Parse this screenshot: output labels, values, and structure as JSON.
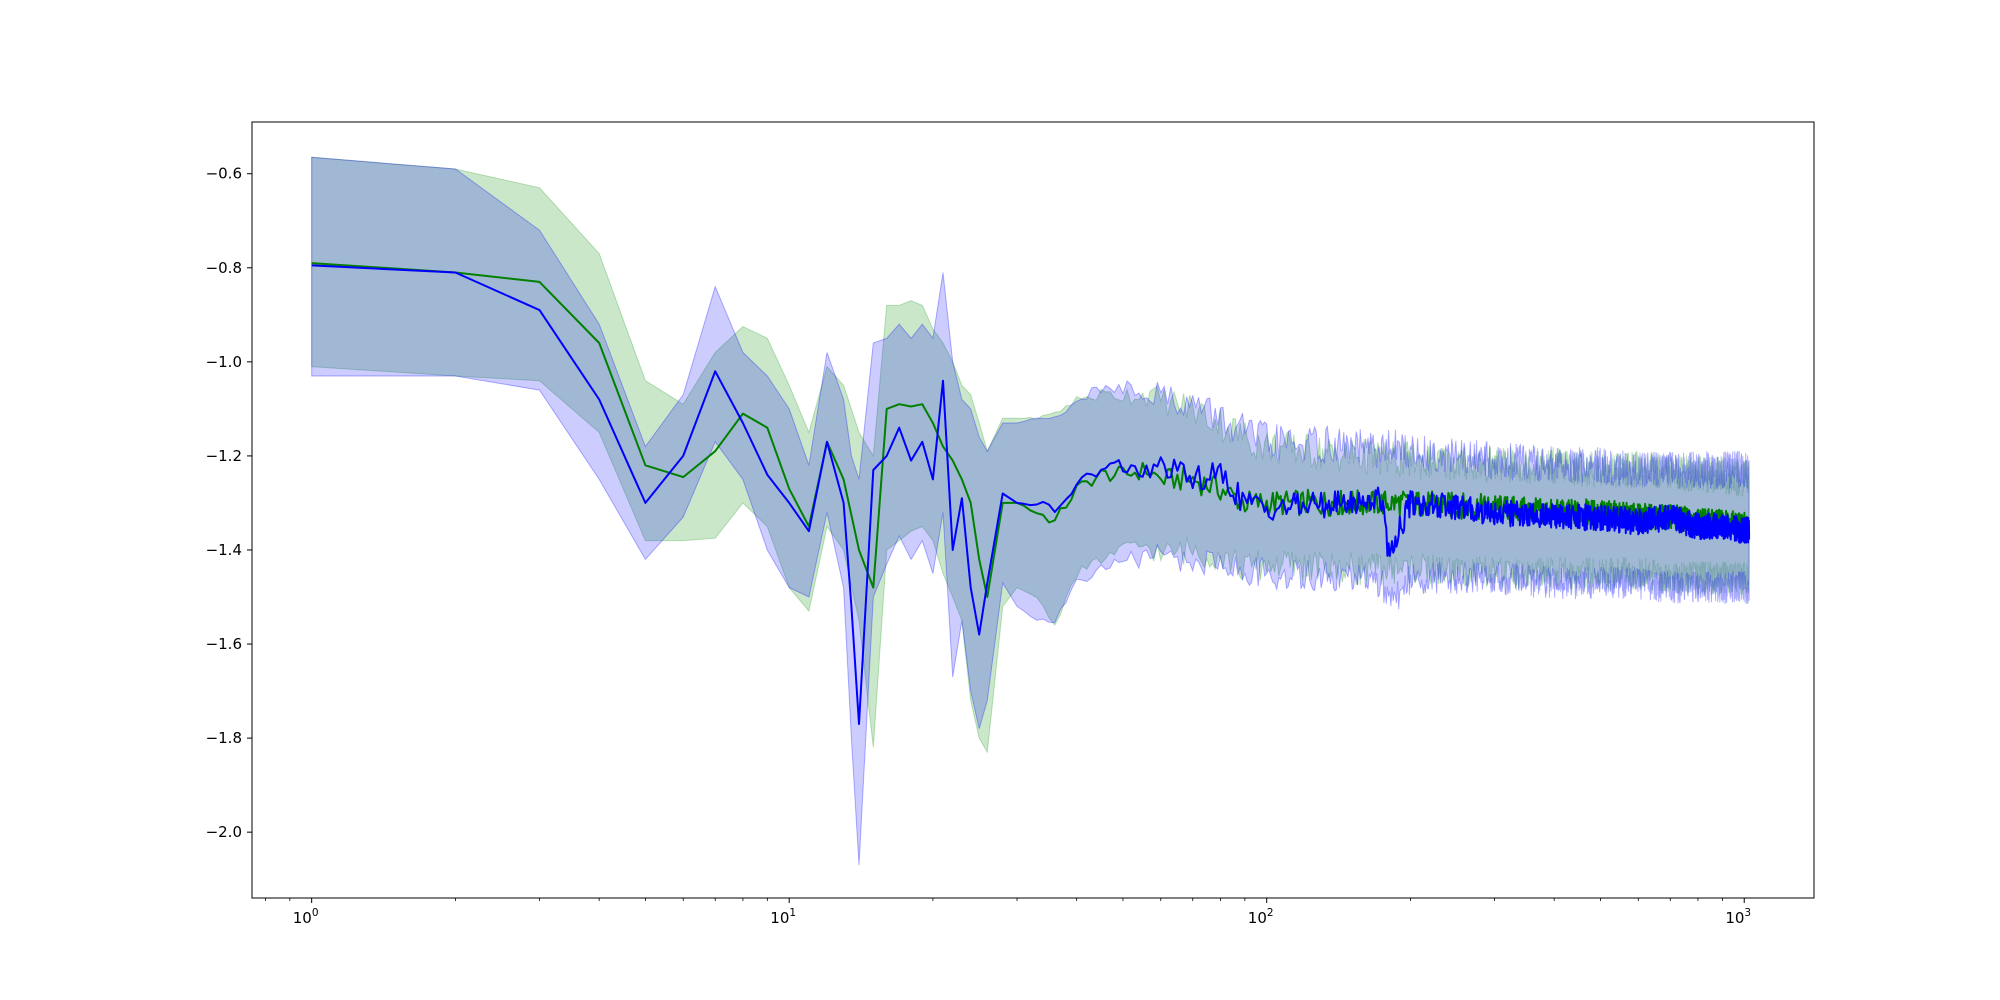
{
  "chart_data": {
    "type": "line",
    "title": "",
    "xlabel": "",
    "ylabel": "",
    "xscale": "log",
    "xlim": [
      0.75,
      1400
    ],
    "ylim": [
      -2.14,
      -0.49
    ],
    "grid": false,
    "xticks": [
      {
        "value": 1,
        "base": "10",
        "exp": "0"
      },
      {
        "value": 10,
        "base": "10",
        "exp": "1"
      },
      {
        "value": 100,
        "base": "10",
        "exp": "2"
      },
      {
        "value": 1000,
        "base": "10",
        "exp": "3"
      }
    ],
    "yticks": [
      {
        "value": -0.6,
        "label": "−0.6"
      },
      {
        "value": -0.8,
        "label": "−0.8"
      },
      {
        "value": -1.0,
        "label": "−1.0"
      },
      {
        "value": -1.2,
        "label": "−1.2"
      },
      {
        "value": -1.4,
        "label": "−1.4"
      },
      {
        "value": -1.6,
        "label": "−1.6"
      },
      {
        "value": -1.8,
        "label": "−1.8"
      },
      {
        "value": -2.0,
        "label": "−2.0"
      }
    ],
    "series": [
      {
        "color": "#008000",
        "band_color": "#2ca02c",
        "band_opacity": 0.25,
        "x": [
          1,
          2,
          3,
          4,
          5,
          6,
          7,
          8,
          9,
          10,
          11,
          12,
          13,
          14,
          15,
          16,
          17,
          18,
          19,
          20,
          21,
          22,
          23,
          24,
          25,
          26,
          28,
          30,
          33,
          36,
          40,
          45,
          50,
          56,
          60,
          70,
          80,
          90,
          100,
          150,
          200,
          300,
          400,
          500,
          600,
          700,
          800,
          900,
          1024
        ],
        "mean": [
          -0.79,
          -0.81,
          -0.83,
          -0.96,
          -1.22,
          -1.245,
          -1.19,
          -1.11,
          -1.14,
          -1.27,
          -1.35,
          -1.17,
          -1.25,
          -1.4,
          -1.48,
          -1.1,
          -1.09,
          -1.095,
          -1.09,
          -1.13,
          -1.18,
          -1.21,
          -1.25,
          -1.3,
          -1.42,
          -1.5,
          -1.3,
          -1.3,
          -1.32,
          -1.34,
          -1.27,
          -1.24,
          -1.24,
          -1.23,
          -1.25,
          -1.25,
          -1.27,
          -1.3,
          -1.3,
          -1.3,
          -1.3,
          -1.31,
          -1.32,
          -1.32,
          -1.33,
          -1.33,
          -1.34,
          -1.34,
          -1.35
        ],
        "upper": [
          -0.565,
          -0.59,
          -0.63,
          -0.77,
          -1.04,
          -1.09,
          -0.98,
          -0.925,
          -0.95,
          -1.05,
          -1.15,
          -1.01,
          -1.05,
          -1.15,
          -1.2,
          -0.88,
          -0.88,
          -0.87,
          -0.88,
          -0.93,
          -0.96,
          -1.0,
          -1.05,
          -1.07,
          -1.13,
          -1.19,
          -1.12,
          -1.12,
          -1.12,
          -1.11,
          -1.08,
          -1.07,
          -1.07,
          -1.07,
          -1.08,
          -1.1,
          -1.13,
          -1.16,
          -1.18,
          -1.2,
          -1.21,
          -1.22,
          -1.22,
          -1.23,
          -1.23,
          -1.23,
          -1.24,
          -1.24,
          -1.25
        ],
        "lower": [
          -1.01,
          -1.03,
          -1.04,
          -1.15,
          -1.38,
          -1.38,
          -1.375,
          -1.3,
          -1.35,
          -1.48,
          -1.53,
          -1.35,
          -1.4,
          -1.55,
          -1.82,
          -1.4,
          -1.38,
          -1.36,
          -1.35,
          -1.38,
          -1.45,
          -1.5,
          -1.55,
          -1.72,
          -1.8,
          -1.83,
          -1.52,
          -1.48,
          -1.5,
          -1.56,
          -1.45,
          -1.42,
          -1.4,
          -1.39,
          -1.41,
          -1.4,
          -1.41,
          -1.44,
          -1.43,
          -1.44,
          -1.44,
          -1.45,
          -1.45,
          -1.45,
          -1.45,
          -1.46,
          -1.46,
          -1.46,
          -1.46
        ]
      },
      {
        "color": "#0000ff",
        "band_color": "#0000ff",
        "band_opacity": 0.2,
        "x": [
          1,
          2,
          3,
          4,
          5,
          6,
          7,
          8,
          9,
          10,
          11,
          12,
          13,
          13.5,
          14,
          15,
          16,
          17,
          18,
          19,
          20,
          21,
          22,
          23,
          24,
          25,
          26,
          28,
          30,
          33,
          36,
          40,
          45,
          50,
          56,
          60,
          70,
          80,
          90,
          100,
          150,
          175,
          180,
          200,
          300,
          400,
          500,
          600,
          700,
          800,
          900,
          1024
        ],
        "mean": [
          -0.795,
          -0.81,
          -0.89,
          -1.08,
          -1.3,
          -1.2,
          -1.02,
          -1.13,
          -1.24,
          -1.3,
          -1.36,
          -1.17,
          -1.3,
          -1.52,
          -1.77,
          -1.23,
          -1.2,
          -1.14,
          -1.21,
          -1.17,
          -1.25,
          -1.04,
          -1.4,
          -1.29,
          -1.48,
          -1.58,
          -1.47,
          -1.28,
          -1.3,
          -1.3,
          -1.32,
          -1.26,
          -1.23,
          -1.22,
          -1.24,
          -1.22,
          -1.25,
          -1.24,
          -1.3,
          -1.31,
          -1.3,
          -1.29,
          -1.41,
          -1.3,
          -1.32,
          -1.33,
          -1.33,
          -1.34,
          -1.33,
          -1.35,
          -1.35,
          -1.36
        ],
        "upper": [
          -0.565,
          -0.59,
          -0.72,
          -0.92,
          -1.18,
          -1.07,
          -0.84,
          -0.98,
          -1.03,
          -1.1,
          -1.22,
          -0.98,
          -1.08,
          -1.2,
          -1.25,
          -0.96,
          -0.95,
          -0.92,
          -0.95,
          -0.92,
          -0.95,
          -0.81,
          -1.0,
          -1.08,
          -1.1,
          -1.16,
          -1.19,
          -1.13,
          -1.13,
          -1.12,
          -1.12,
          -1.08,
          -1.06,
          -1.05,
          -1.06,
          -1.07,
          -1.09,
          -1.12,
          -1.15,
          -1.17,
          -1.18,
          -1.19,
          -1.18,
          -1.19,
          -1.21,
          -1.22,
          -1.22,
          -1.23,
          -1.23,
          -1.23,
          -1.23,
          -1.23
        ],
        "lower": [
          -1.03,
          -1.03,
          -1.06,
          -1.25,
          -1.42,
          -1.33,
          -1.17,
          -1.25,
          -1.4,
          -1.48,
          -1.5,
          -1.32,
          -1.48,
          -1.8,
          -2.07,
          -1.5,
          -1.43,
          -1.37,
          -1.42,
          -1.38,
          -1.45,
          -1.32,
          -1.67,
          -1.55,
          -1.7,
          -1.78,
          -1.72,
          -1.47,
          -1.52,
          -1.55,
          -1.55,
          -1.47,
          -1.44,
          -1.42,
          -1.42,
          -1.41,
          -1.43,
          -1.42,
          -1.45,
          -1.45,
          -1.46,
          -1.47,
          -1.52,
          -1.46,
          -1.46,
          -1.47,
          -1.47,
          -1.47,
          -1.48,
          -1.48,
          -1.48,
          -1.48
        ]
      }
    ]
  }
}
